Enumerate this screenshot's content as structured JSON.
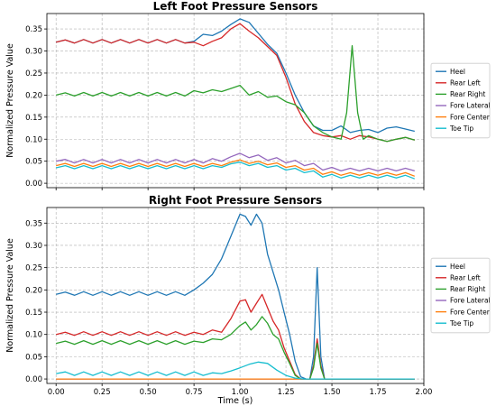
{
  "chart_data": [
    {
      "type": "line",
      "title": "Left Foot Pressure Sensors",
      "ylabel": "Normalized Pressure Value",
      "xlabel": "",
      "xlim": [
        -0.05,
        2.0
      ],
      "ylim": [
        -0.01,
        0.385
      ],
      "yticks": [
        0.0,
        0.05,
        0.1,
        0.15,
        0.2,
        0.25,
        0.3,
        0.35
      ],
      "ytick_labels": [
        "0.00",
        "0.05",
        "0.10",
        "0.15",
        "0.20",
        "0.25",
        "0.30",
        "0.35"
      ],
      "grid": true,
      "legend_position": "right",
      "series": [
        {
          "name": "Heel",
          "color": "#1f77b4",
          "x": [
            0.0,
            0.05,
            0.1,
            0.15,
            0.2,
            0.25,
            0.3,
            0.35,
            0.4,
            0.45,
            0.5,
            0.55,
            0.6,
            0.65,
            0.7,
            0.75,
            0.8,
            0.85,
            0.9,
            0.95,
            1.0,
            1.05,
            1.1,
            1.15,
            1.2,
            1.25,
            1.3,
            1.35,
            1.4,
            1.45,
            1.5,
            1.55,
            1.6,
            1.65,
            1.7,
            1.75,
            1.8,
            1.85,
            1.9,
            1.95
          ],
          "values": [
            0.32,
            0.325,
            0.318,
            0.326,
            0.318,
            0.326,
            0.318,
            0.326,
            0.318,
            0.326,
            0.318,
            0.326,
            0.318,
            0.326,
            0.318,
            0.322,
            0.338,
            0.335,
            0.345,
            0.36,
            0.373,
            0.365,
            0.34,
            0.315,
            0.295,
            0.25,
            0.2,
            0.16,
            0.13,
            0.12,
            0.12,
            0.13,
            0.115,
            0.12,
            0.122,
            0.115,
            0.125,
            0.128,
            0.123,
            0.118
          ]
        },
        {
          "name": "Rear Left",
          "color": "#d62728",
          "x": [
            0.0,
            0.05,
            0.1,
            0.15,
            0.2,
            0.25,
            0.3,
            0.35,
            0.4,
            0.45,
            0.5,
            0.55,
            0.6,
            0.65,
            0.7,
            0.75,
            0.8,
            0.85,
            0.9,
            0.95,
            1.0,
            1.05,
            1.1,
            1.15,
            1.2,
            1.25,
            1.3,
            1.35,
            1.4,
            1.45,
            1.5,
            1.55,
            1.6,
            1.65,
            1.7,
            1.75,
            1.8,
            1.85,
            1.9,
            1.95
          ],
          "values": [
            0.32,
            0.325,
            0.318,
            0.326,
            0.318,
            0.326,
            0.318,
            0.326,
            0.318,
            0.326,
            0.318,
            0.326,
            0.318,
            0.326,
            0.318,
            0.32,
            0.312,
            0.322,
            0.33,
            0.35,
            0.362,
            0.345,
            0.33,
            0.31,
            0.29,
            0.24,
            0.18,
            0.14,
            0.115,
            0.108,
            0.105,
            0.108,
            0.1,
            0.108,
            0.105,
            0.1,
            0.095,
            0.1,
            0.104,
            0.098
          ]
        },
        {
          "name": "Rear Right",
          "color": "#2ca02c",
          "x": [
            0.0,
            0.05,
            0.1,
            0.15,
            0.2,
            0.25,
            0.3,
            0.35,
            0.4,
            0.45,
            0.5,
            0.55,
            0.6,
            0.65,
            0.7,
            0.75,
            0.8,
            0.85,
            0.9,
            0.95,
            1.0,
            1.05,
            1.1,
            1.15,
            1.2,
            1.25,
            1.3,
            1.35,
            1.4,
            1.45,
            1.5,
            1.55,
            1.58,
            1.61,
            1.64,
            1.67,
            1.7,
            1.75,
            1.8,
            1.85,
            1.9,
            1.95
          ],
          "values": [
            0.2,
            0.205,
            0.198,
            0.206,
            0.198,
            0.206,
            0.198,
            0.206,
            0.198,
            0.206,
            0.198,
            0.206,
            0.198,
            0.206,
            0.198,
            0.21,
            0.205,
            0.212,
            0.208,
            0.215,
            0.222,
            0.2,
            0.208,
            0.195,
            0.198,
            0.185,
            0.178,
            0.16,
            0.13,
            0.115,
            0.105,
            0.1,
            0.16,
            0.312,
            0.16,
            0.1,
            0.108,
            0.1,
            0.095,
            0.1,
            0.104,
            0.098
          ]
        },
        {
          "name": "Fore Lateral",
          "color": "#9467bd",
          "x": [
            0.0,
            0.05,
            0.1,
            0.15,
            0.2,
            0.25,
            0.3,
            0.35,
            0.4,
            0.45,
            0.5,
            0.55,
            0.6,
            0.65,
            0.7,
            0.75,
            0.8,
            0.85,
            0.9,
            0.95,
            1.0,
            1.05,
            1.1,
            1.15,
            1.2,
            1.25,
            1.3,
            1.35,
            1.4,
            1.45,
            1.5,
            1.55,
            1.6,
            1.65,
            1.7,
            1.75,
            1.8,
            1.85,
            1.9,
            1.95
          ],
          "values": [
            0.05,
            0.054,
            0.046,
            0.054,
            0.046,
            0.054,
            0.046,
            0.054,
            0.046,
            0.054,
            0.046,
            0.054,
            0.046,
            0.054,
            0.046,
            0.054,
            0.046,
            0.056,
            0.05,
            0.06,
            0.068,
            0.058,
            0.064,
            0.052,
            0.058,
            0.046,
            0.052,
            0.04,
            0.045,
            0.03,
            0.036,
            0.028,
            0.034,
            0.028,
            0.034,
            0.028,
            0.034,
            0.028,
            0.034,
            0.028
          ]
        },
        {
          "name": "Fore Center",
          "color": "#ff7f0e",
          "x": [
            0.0,
            0.05,
            0.1,
            0.15,
            0.2,
            0.25,
            0.3,
            0.35,
            0.4,
            0.45,
            0.5,
            0.55,
            0.6,
            0.65,
            0.7,
            0.75,
            0.8,
            0.85,
            0.9,
            0.95,
            1.0,
            1.05,
            1.1,
            1.15,
            1.2,
            1.25,
            1.3,
            1.35,
            1.4,
            1.45,
            1.5,
            1.55,
            1.6,
            1.65,
            1.7,
            1.75,
            1.8,
            1.85,
            1.9,
            1.95
          ],
          "values": [
            0.04,
            0.045,
            0.038,
            0.045,
            0.038,
            0.045,
            0.038,
            0.045,
            0.038,
            0.045,
            0.038,
            0.045,
            0.038,
            0.045,
            0.038,
            0.045,
            0.038,
            0.045,
            0.04,
            0.048,
            0.053,
            0.045,
            0.05,
            0.042,
            0.046,
            0.036,
            0.04,
            0.03,
            0.034,
            0.02,
            0.026,
            0.018,
            0.024,
            0.018,
            0.024,
            0.018,
            0.024,
            0.018,
            0.024,
            0.016
          ]
        },
        {
          "name": "Toe Tip",
          "color": "#17becf",
          "x": [
            0.0,
            0.05,
            0.1,
            0.15,
            0.2,
            0.25,
            0.3,
            0.35,
            0.4,
            0.45,
            0.5,
            0.55,
            0.6,
            0.65,
            0.7,
            0.75,
            0.8,
            0.85,
            0.9,
            0.95,
            1.0,
            1.05,
            1.1,
            1.15,
            1.2,
            1.25,
            1.3,
            1.35,
            1.4,
            1.45,
            1.5,
            1.55,
            1.6,
            1.65,
            1.7,
            1.75,
            1.8,
            1.85,
            1.9,
            1.95
          ],
          "values": [
            0.035,
            0.04,
            0.033,
            0.04,
            0.033,
            0.04,
            0.033,
            0.04,
            0.033,
            0.04,
            0.033,
            0.04,
            0.033,
            0.04,
            0.033,
            0.04,
            0.033,
            0.04,
            0.036,
            0.044,
            0.048,
            0.04,
            0.045,
            0.036,
            0.04,
            0.03,
            0.034,
            0.024,
            0.028,
            0.014,
            0.02,
            0.012,
            0.018,
            0.012,
            0.018,
            0.012,
            0.018,
            0.012,
            0.018,
            0.01
          ]
        }
      ]
    },
    {
      "type": "line",
      "title": "Right Foot Pressure Sensors",
      "ylabel": "Normalized Pressure Value",
      "xlabel": "Time (s)",
      "xlim": [
        -0.05,
        2.0
      ],
      "ylim": [
        -0.01,
        0.385
      ],
      "xticks": [
        0.0,
        0.25,
        0.5,
        0.75,
        1.0,
        1.25,
        1.5,
        1.75,
        2.0
      ],
      "xtick_labels": [
        "0.00",
        "0.25",
        "0.50",
        "0.75",
        "1.00",
        "1.25",
        "1.50",
        "1.75",
        "2.00"
      ],
      "yticks": [
        0.0,
        0.05,
        0.1,
        0.15,
        0.2,
        0.25,
        0.3,
        0.35
      ],
      "ytick_labels": [
        "0.00",
        "0.05",
        "0.10",
        "0.15",
        "0.20",
        "0.25",
        "0.30",
        "0.35"
      ],
      "grid": true,
      "legend_position": "right",
      "series": [
        {
          "name": "Heel",
          "color": "#1f77b4",
          "x": [
            0.0,
            0.05,
            0.1,
            0.15,
            0.2,
            0.25,
            0.3,
            0.35,
            0.4,
            0.45,
            0.5,
            0.55,
            0.6,
            0.65,
            0.7,
            0.75,
            0.8,
            0.85,
            0.9,
            0.95,
            1.0,
            1.03,
            1.06,
            1.09,
            1.12,
            1.15,
            1.18,
            1.21,
            1.24,
            1.27,
            1.3,
            1.33,
            1.36,
            1.38,
            1.4,
            1.42,
            1.44,
            1.46,
            1.5,
            1.6,
            1.7,
            1.8,
            1.9,
            1.95
          ],
          "values": [
            0.19,
            0.195,
            0.188,
            0.196,
            0.188,
            0.196,
            0.188,
            0.196,
            0.188,
            0.196,
            0.188,
            0.196,
            0.188,
            0.196,
            0.188,
            0.2,
            0.215,
            0.235,
            0.27,
            0.32,
            0.37,
            0.365,
            0.345,
            0.37,
            0.35,
            0.28,
            0.24,
            0.2,
            0.15,
            0.1,
            0.04,
            0.005,
            0.0,
            0.0,
            0.05,
            0.25,
            0.05,
            0.0,
            0.0,
            0.0,
            0.0,
            0.0,
            0.0,
            0.0
          ]
        },
        {
          "name": "Rear Left",
          "color": "#d62728",
          "x": [
            0.0,
            0.05,
            0.1,
            0.15,
            0.2,
            0.25,
            0.3,
            0.35,
            0.4,
            0.45,
            0.5,
            0.55,
            0.6,
            0.65,
            0.7,
            0.75,
            0.8,
            0.85,
            0.9,
            0.95,
            1.0,
            1.03,
            1.06,
            1.09,
            1.12,
            1.15,
            1.18,
            1.21,
            1.24,
            1.27,
            1.3,
            1.33,
            1.36,
            1.38,
            1.4,
            1.42,
            1.44,
            1.46,
            1.5,
            1.6,
            1.7,
            1.8,
            1.9,
            1.95
          ],
          "values": [
            0.1,
            0.105,
            0.098,
            0.106,
            0.098,
            0.106,
            0.098,
            0.106,
            0.098,
            0.106,
            0.098,
            0.106,
            0.098,
            0.106,
            0.098,
            0.105,
            0.1,
            0.11,
            0.105,
            0.135,
            0.175,
            0.178,
            0.15,
            0.17,
            0.19,
            0.16,
            0.13,
            0.11,
            0.07,
            0.04,
            0.01,
            0.0,
            0.0,
            0.0,
            0.03,
            0.09,
            0.03,
            0.0,
            0.0,
            0.0,
            0.0,
            0.0,
            0.0,
            0.0
          ]
        },
        {
          "name": "Rear Right",
          "color": "#2ca02c",
          "x": [
            0.0,
            0.05,
            0.1,
            0.15,
            0.2,
            0.25,
            0.3,
            0.35,
            0.4,
            0.45,
            0.5,
            0.55,
            0.6,
            0.65,
            0.7,
            0.75,
            0.8,
            0.85,
            0.9,
            0.95,
            1.0,
            1.03,
            1.06,
            1.09,
            1.12,
            1.15,
            1.18,
            1.21,
            1.24,
            1.27,
            1.3,
            1.33,
            1.36,
            1.38,
            1.4,
            1.42,
            1.44,
            1.46,
            1.5,
            1.6,
            1.7,
            1.8,
            1.9,
            1.95
          ],
          "values": [
            0.08,
            0.085,
            0.078,
            0.086,
            0.078,
            0.086,
            0.078,
            0.086,
            0.078,
            0.086,
            0.078,
            0.086,
            0.078,
            0.086,
            0.078,
            0.085,
            0.082,
            0.09,
            0.088,
            0.1,
            0.12,
            0.128,
            0.11,
            0.122,
            0.14,
            0.125,
            0.1,
            0.09,
            0.06,
            0.035,
            0.008,
            0.0,
            0.0,
            0.0,
            0.025,
            0.08,
            0.025,
            0.0,
            0.0,
            0.0,
            0.0,
            0.0,
            0.0,
            0.0
          ]
        },
        {
          "name": "Fore Lateral",
          "color": "#9467bd",
          "x": [
            0.0,
            0.25,
            0.5,
            0.75,
            1.0,
            1.25,
            1.5,
            1.75,
            1.95
          ],
          "values": [
            0.0,
            0.0,
            0.0,
            0.0,
            0.0,
            0.0,
            0.0,
            0.0,
            0.0
          ]
        },
        {
          "name": "Fore Center",
          "color": "#ff7f0e",
          "x": [
            0.0,
            0.25,
            0.5,
            0.75,
            1.0,
            1.25,
            1.5,
            1.75,
            1.95
          ],
          "values": [
            0.0,
            0.0,
            0.0,
            0.0,
            0.0,
            0.0,
            0.0,
            0.0,
            0.0
          ]
        },
        {
          "name": "Toe Tip",
          "color": "#17becf",
          "x": [
            0.0,
            0.05,
            0.1,
            0.15,
            0.2,
            0.25,
            0.3,
            0.35,
            0.4,
            0.45,
            0.5,
            0.55,
            0.6,
            0.65,
            0.7,
            0.75,
            0.8,
            0.85,
            0.9,
            0.95,
            1.0,
            1.05,
            1.1,
            1.15,
            1.2,
            1.25,
            1.3,
            1.35,
            1.4,
            1.5,
            1.6,
            1.7,
            1.8,
            1.9,
            1.95
          ],
          "values": [
            0.012,
            0.016,
            0.008,
            0.016,
            0.008,
            0.016,
            0.008,
            0.016,
            0.008,
            0.016,
            0.008,
            0.016,
            0.008,
            0.016,
            0.008,
            0.016,
            0.008,
            0.014,
            0.012,
            0.018,
            0.025,
            0.033,
            0.038,
            0.035,
            0.02,
            0.008,
            0.002,
            0.0,
            0.0,
            0.0,
            0.0,
            0.0,
            0.0,
            0.0,
            0.0
          ]
        }
      ]
    }
  ]
}
